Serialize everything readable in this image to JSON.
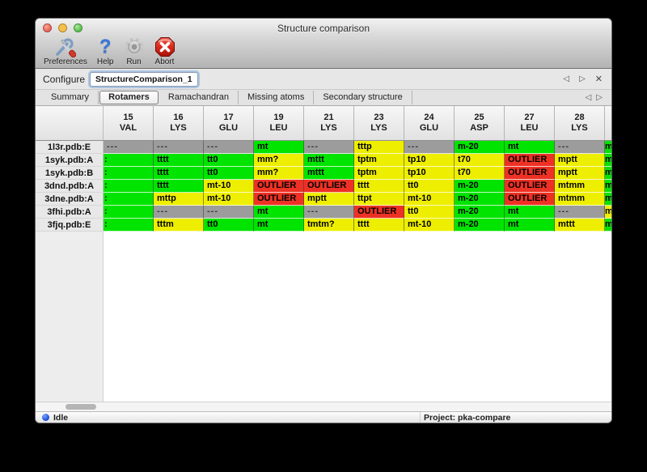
{
  "window": {
    "title": "Structure comparison"
  },
  "toolbar": {
    "buttons": [
      {
        "label": "Preferences",
        "icon": "tools-icon"
      },
      {
        "label": "Help",
        "icon": "question-icon"
      },
      {
        "label": "Run",
        "icon": "gear-icon"
      },
      {
        "label": "Abort",
        "icon": "stop-icon"
      }
    ]
  },
  "configure": {
    "label": "Configure",
    "value": "StructureComparison_1"
  },
  "tabs": {
    "items": [
      "Summary",
      "Rotamers",
      "Ramachandran",
      "Missing atoms",
      "Secondary structure"
    ],
    "selected": "Rotamers"
  },
  "icons": {
    "prev": "◁",
    "next": "▷",
    "close": "✕"
  },
  "cell_colors": {
    "green": "#00e400",
    "yellow": "#eeee00",
    "red": "#ed3124",
    "gray": "#9c9c9c"
  },
  "table": {
    "columns": [
      {
        "num": "15",
        "res": "VAL"
      },
      {
        "num": "16",
        "res": "LYS"
      },
      {
        "num": "17",
        "res": "GLU"
      },
      {
        "num": "19",
        "res": "LEU"
      },
      {
        "num": "21",
        "res": "LYS"
      },
      {
        "num": "23",
        "res": "LYS"
      },
      {
        "num": "24",
        "res": "GLU"
      },
      {
        "num": "25",
        "res": "ASP"
      },
      {
        "num": "27",
        "res": "LEU"
      },
      {
        "num": "28",
        "res": "LYS"
      }
    ],
    "rows": [
      {
        "label": "1l3r.pdb:E",
        "cells": [
          {
            "text": "---",
            "color": "gray"
          },
          {
            "text": "---",
            "color": "gray"
          },
          {
            "text": "---",
            "color": "gray"
          },
          {
            "text": "mt",
            "color": "green"
          },
          {
            "text": "---",
            "color": "gray"
          },
          {
            "text": "tttp",
            "color": "yellow"
          },
          {
            "text": "---",
            "color": "gray"
          },
          {
            "text": "m-20",
            "color": "green"
          },
          {
            "text": "mt",
            "color": "green"
          },
          {
            "text": "---",
            "color": "gray"
          }
        ],
        "sliver": {
          "text": "m",
          "color": "green"
        }
      },
      {
        "label": "1syk.pdb:A",
        "cells": [
          {
            "text": ":",
            "color": "green",
            "clip": true
          },
          {
            "text": "tttt",
            "color": "green"
          },
          {
            "text": "tt0",
            "color": "green"
          },
          {
            "text": "mm?",
            "color": "yellow"
          },
          {
            "text": "mttt",
            "color": "green"
          },
          {
            "text": "tptm",
            "color": "yellow"
          },
          {
            "text": "tp10",
            "color": "yellow"
          },
          {
            "text": "t70",
            "color": "yellow"
          },
          {
            "text": "OUTLIER",
            "color": "red"
          },
          {
            "text": "mptt",
            "color": "yellow"
          }
        ],
        "sliver": {
          "text": "m",
          "color": "green"
        }
      },
      {
        "label": "1syk.pdb:B",
        "cells": [
          {
            "text": ":",
            "color": "green",
            "clip": true
          },
          {
            "text": "tttt",
            "color": "green"
          },
          {
            "text": "tt0",
            "color": "green"
          },
          {
            "text": "mm?",
            "color": "yellow"
          },
          {
            "text": "mttt",
            "color": "green"
          },
          {
            "text": "tptm",
            "color": "yellow"
          },
          {
            "text": "tp10",
            "color": "yellow"
          },
          {
            "text": "t70",
            "color": "yellow"
          },
          {
            "text": "OUTLIER",
            "color": "red"
          },
          {
            "text": "mptt",
            "color": "yellow"
          }
        ],
        "sliver": {
          "text": "m",
          "color": "green"
        }
      },
      {
        "label": "3dnd.pdb:A",
        "cells": [
          {
            "text": ":",
            "color": "green",
            "clip": true
          },
          {
            "text": "tttt",
            "color": "green"
          },
          {
            "text": "mt-10",
            "color": "yellow"
          },
          {
            "text": "OUTLIER",
            "color": "red"
          },
          {
            "text": "OUTLIER",
            "color": "red"
          },
          {
            "text": "tttt",
            "color": "yellow"
          },
          {
            "text": "tt0",
            "color": "yellow"
          },
          {
            "text": "m-20",
            "color": "green"
          },
          {
            "text": "OUTLIER",
            "color": "red"
          },
          {
            "text": "mtmm",
            "color": "yellow"
          }
        ],
        "sliver": {
          "text": "m",
          "color": "green"
        }
      },
      {
        "label": "3dne.pdb:A",
        "cells": [
          {
            "text": ":",
            "color": "green",
            "clip": true
          },
          {
            "text": "mttp",
            "color": "yellow"
          },
          {
            "text": "mt-10",
            "color": "yellow"
          },
          {
            "text": "OUTLIER",
            "color": "red"
          },
          {
            "text": "mptt",
            "color": "yellow"
          },
          {
            "text": "ttpt",
            "color": "yellow"
          },
          {
            "text": "mt-10",
            "color": "yellow"
          },
          {
            "text": "m-20",
            "color": "green"
          },
          {
            "text": "OUTLIER",
            "color": "red"
          },
          {
            "text": "mtmm",
            "color": "yellow"
          }
        ],
        "sliver": {
          "text": "m",
          "color": "green"
        }
      },
      {
        "label": "3fhi.pdb:A",
        "cells": [
          {
            "text": ":",
            "color": "green",
            "clip": true
          },
          {
            "text": "---",
            "color": "gray"
          },
          {
            "text": "---",
            "color": "gray"
          },
          {
            "text": "mt",
            "color": "green"
          },
          {
            "text": "---",
            "color": "gray"
          },
          {
            "text": "OUTLIER",
            "color": "red"
          },
          {
            "text": "tt0",
            "color": "yellow"
          },
          {
            "text": "m-20",
            "color": "green"
          },
          {
            "text": "mt",
            "color": "green"
          },
          {
            "text": "---",
            "color": "gray"
          }
        ],
        "sliver": {
          "text": "m",
          "color": "yellow"
        }
      },
      {
        "label": "3fjq.pdb:E",
        "cells": [
          {
            "text": ":",
            "color": "green",
            "clip": true
          },
          {
            "text": "tttm",
            "color": "yellow"
          },
          {
            "text": "tt0",
            "color": "green"
          },
          {
            "text": "mt",
            "color": "green"
          },
          {
            "text": "tmtm?",
            "color": "yellow"
          },
          {
            "text": "tttt",
            "color": "yellow"
          },
          {
            "text": "mt-10",
            "color": "yellow"
          },
          {
            "text": "m-20",
            "color": "green"
          },
          {
            "text": "mt",
            "color": "green"
          },
          {
            "text": "mttt",
            "color": "yellow"
          }
        ],
        "sliver": {
          "text": "m",
          "color": "green"
        }
      }
    ]
  },
  "status": {
    "state": "Idle",
    "project": "Project: pka-compare"
  }
}
